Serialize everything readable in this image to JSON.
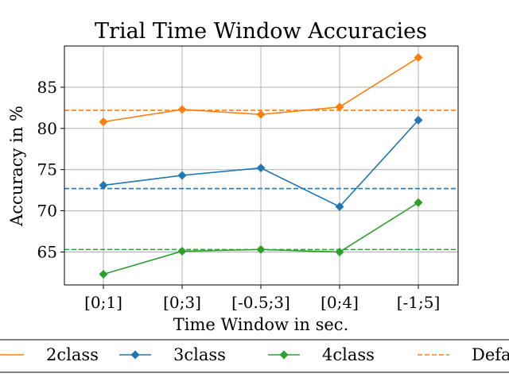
{
  "chart_data": {
    "type": "line",
    "title": "Trial Time Window Accuracies",
    "xlabel": "Time Window in sec.",
    "ylabel": "Accuracy in %",
    "categories": [
      "[0;1]",
      "[0;3]",
      "[-0.5;3]",
      "[0;4]",
      "[-1;5]"
    ],
    "ylim": [
      61,
      90
    ],
    "yticks": [
      65,
      70,
      75,
      80,
      85
    ],
    "grid": true,
    "legend_position": "bottom",
    "series": [
      {
        "name": "2class",
        "color": "#ff7f0e",
        "marker": "diamond",
        "values": [
          80.8,
          82.3,
          81.7,
          82.6,
          88.6
        ]
      },
      {
        "name": "3class",
        "color": "#1f77b4",
        "marker": "diamond",
        "values": [
          73.1,
          74.3,
          75.2,
          70.5,
          81.0
        ]
      },
      {
        "name": "4class",
        "color": "#2ca02c",
        "marker": "diamond",
        "values": [
          62.3,
          65.1,
          65.3,
          65.0,
          71.0
        ]
      }
    ],
    "reference_lines": [
      {
        "name": "Default",
        "color": "#ff7f0e",
        "style": "dashed",
        "value": 82.2
      },
      {
        "color": "#1f77b4",
        "style": "dashed",
        "value": 72.7
      },
      {
        "color": "#2ca02c",
        "style": "dashed",
        "value": 65.3
      }
    ],
    "legend": [
      "2class",
      "3class",
      "4class",
      "Default"
    ]
  }
}
